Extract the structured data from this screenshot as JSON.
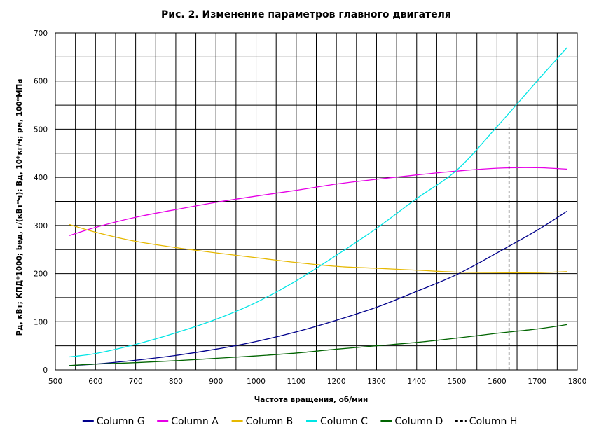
{
  "chart_data": {
    "type": "line",
    "title": "Рис. 2. Изменение параметров главного двигателя",
    "xlabel": "Частота вращения, об/мин",
    "ylabel": "Рд, кВт;  КПД*1000;  bед, г/(кВт*ч);  Вд, 10*кг/ч;  рм, 100*МПа",
    "xlim": [
      500,
      1800
    ],
    "ylim": [
      0,
      700
    ],
    "xticks": [
      500,
      600,
      700,
      800,
      900,
      1000,
      1100,
      1200,
      1300,
      1400,
      1500,
      1600,
      1700,
      1800
    ],
    "yticks": [
      0,
      100,
      200,
      300,
      400,
      500,
      600,
      700
    ],
    "grid": true,
    "legend_position": "bottom",
    "x": [
      535,
      600,
      700,
      800,
      900,
      1000,
      1100,
      1200,
      1300,
      1400,
      1500,
      1600,
      1700,
      1775
    ],
    "series": [
      {
        "name": "Column G",
        "color": "#00008b",
        "style": "solid",
        "values": [
          9,
          12,
          20,
          30,
          43,
          59,
          79,
          103,
          130,
          163,
          198,
          243,
          290,
          330
        ]
      },
      {
        "name": "Column A",
        "color": "#e600e6",
        "style": "solid",
        "values": [
          279,
          296,
          317,
          333,
          348,
          361,
          373,
          386,
          396,
          405,
          413,
          419,
          420,
          417
        ]
      },
      {
        "name": "Column B",
        "color": "#e6b800",
        "style": "solid",
        "values": [
          302,
          286,
          267,
          254,
          243,
          233,
          223,
          215,
          211,
          207,
          203,
          202,
          202,
          204
        ]
      },
      {
        "name": "Column C",
        "color": "#00e5e5",
        "style": "solid",
        "values": [
          27,
          34,
          53,
          77,
          105,
          140,
          185,
          238,
          294,
          356,
          415,
          505,
          600,
          670
        ]
      },
      {
        "name": "Column D",
        "color": "#006400",
        "style": "solid",
        "values": [
          9,
          12,
          15,
          19,
          24,
          29,
          35,
          43,
          50,
          57,
          66,
          76,
          85,
          94
        ]
      },
      {
        "name": "Column H",
        "color": "#000000",
        "style": "dashed",
        "x": [
          1630,
          1630
        ],
        "values": [
          0,
          510
        ]
      }
    ]
  }
}
